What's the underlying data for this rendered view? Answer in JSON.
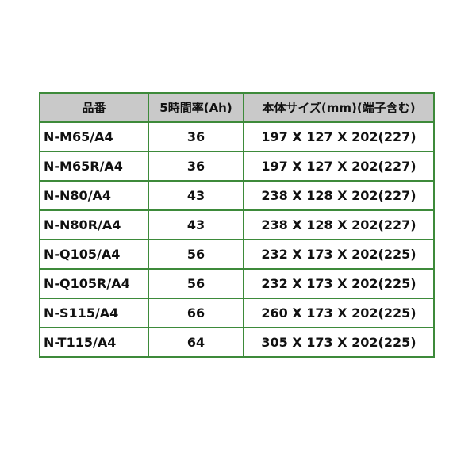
{
  "headers": [
    "品番",
    "5時間率(Ah)",
    "本体サイズ(mm)(端子含む)"
  ],
  "rows": [
    [
      "N-M65/A4",
      "36",
      "197 X 127 X 202(227)"
    ],
    [
      "N-M65R/A4",
      "36",
      "197 X 127 X 202(227)"
    ],
    [
      "N-N80/A4",
      "43",
      "238 X 128 X 202(227)"
    ],
    [
      "N-N80R/A4",
      "43",
      "238 X 128 X 202(227)"
    ],
    [
      "N-Q105/A4",
      "56",
      "232 X 173 X 202(225)"
    ],
    [
      "N-Q105R/A4",
      "56",
      "232 X 173 X 202(225)"
    ],
    [
      "N-S115/A4",
      "66",
      "260 X 173 X 202(225)"
    ],
    [
      "N-T115/A4",
      "64",
      "305 X 173 X 202(225)"
    ]
  ]
}
